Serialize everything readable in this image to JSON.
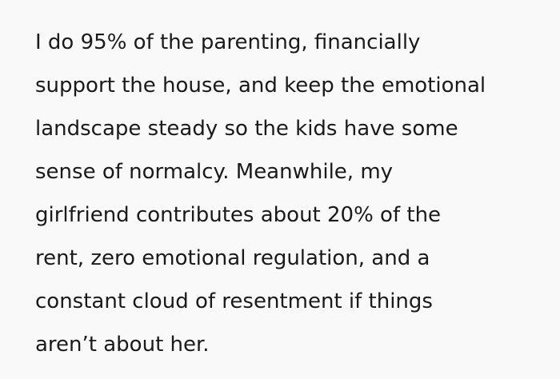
{
  "lines": [
    "I do 95% of the parenting, financially",
    "support the house, and keep the emotional",
    "landscape steady so the kids have some",
    "sense of normalcy. Meanwhile, my",
    "girlfriend contributes about 20% of the",
    "rent, zero emotional regulation, and a",
    "constant cloud of resentment if things",
    "aren’t about her."
  ]
}
